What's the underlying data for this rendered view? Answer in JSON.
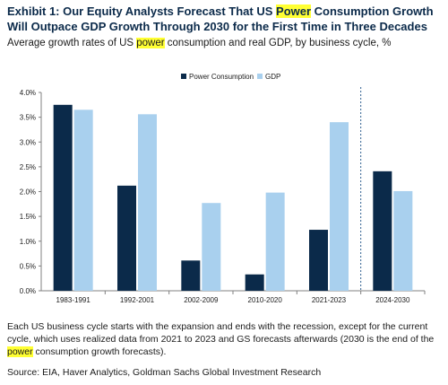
{
  "header": {
    "title_part1": "Exhibit 1: Our Equity Analysts Forecast That US ",
    "title_highlight": "Power",
    "title_part2": " Consumption Growth Will Outpace GDP Growth Through 2030 for the First Time in Three Decades",
    "subtitle_part1": "Average growth rates of US ",
    "subtitle_highlight": "power",
    "subtitle_part2": " consumption and real GDP, by business cycle, %"
  },
  "colors": {
    "power": "#0b2a4a",
    "gdp": "#a9d0ee",
    "axis": "#808080",
    "divider": "#2f5f8f",
    "highlight": "#ffff33"
  },
  "chart_data": {
    "type": "bar",
    "categories": [
      "1983-1991",
      "1992-2001",
      "2002-2009",
      "2010-2020",
      "2021-2023",
      "2024-2030"
    ],
    "series": [
      {
        "name": "Power Consumption",
        "values": [
          3.75,
          2.12,
          0.61,
          0.33,
          1.23,
          2.41
        ]
      },
      {
        "name": "GDP",
        "values": [
          3.65,
          3.56,
          1.77,
          1.98,
          3.4,
          2.01
        ]
      }
    ],
    "ylim": [
      0,
      4.0
    ],
    "yticks": [
      0,
      0.5,
      1.0,
      1.5,
      2.0,
      2.5,
      3.0,
      3.5,
      4.0
    ],
    "ytick_labels": [
      "0.0%",
      "0.5%",
      "1.0%",
      "1.5%",
      "2.0%",
      "2.5%",
      "3.0%",
      "3.5%",
      "4.0%"
    ],
    "forecast_divider_after_category": "2021-2023",
    "legend_position": "top-center",
    "grid": false
  },
  "footer": {
    "note_part1": "Each US business cycle starts with the expansion and ends with the recession, except for the current cycle, which uses realized data from 2021 to 2023 and GS forecasts afterwards (2030 is the end of the ",
    "note_highlight": "power",
    "note_part2": " consumption growth forecasts).",
    "source": "Source: EIA, Haver Analytics, Goldman Sachs Global Investment Research"
  }
}
